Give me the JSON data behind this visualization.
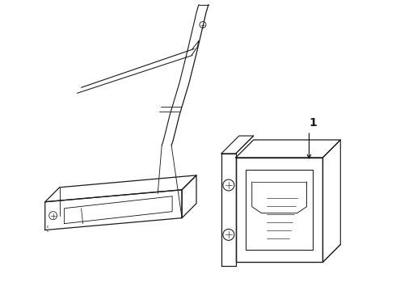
{
  "background_color": "#ffffff",
  "line_color": "#1a1a1a",
  "line_width": 0.9,
  "label_1": "1",
  "fig_width": 4.9,
  "fig_height": 3.6,
  "dpi": 100
}
